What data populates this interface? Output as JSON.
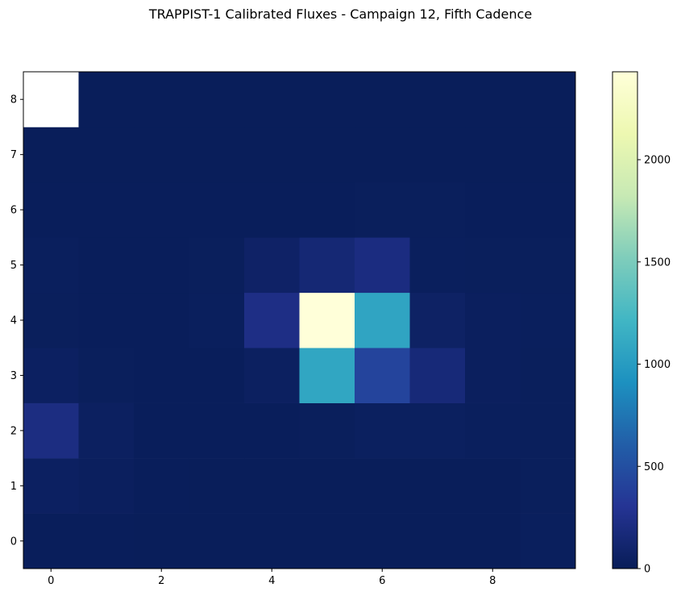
{
  "chart_data": {
    "type": "heatmap",
    "title": "TRAPPIST-1 Calibrated Fluxes - Campaign 12, Fifth Cadence",
    "xlabel": "",
    "ylabel": "",
    "colormap": "YlGnBu_r",
    "x_range": [
      -0.5,
      9.5
    ],
    "y_range": [
      -0.5,
      8.5
    ],
    "x_ticks": [
      0,
      2,
      4,
      6,
      8
    ],
    "y_ticks": [
      0,
      1,
      2,
      3,
      4,
      5,
      6,
      7,
      8
    ],
    "colorbar": {
      "range": [
        0,
        2430
      ],
      "ticks": [
        0,
        500,
        1000,
        1500,
        2000
      ]
    },
    "rows_note": "grid[row][col]; row index = y value (0..8), col index = x value (0..9); null = no data (blank)",
    "grid": [
      [
        15,
        15,
        12,
        12,
        12,
        12,
        12,
        12,
        12,
        25
      ],
      [
        45,
        30,
        15,
        12,
        12,
        12,
        12,
        12,
        12,
        20
      ],
      [
        210,
        40,
        15,
        15,
        15,
        20,
        35,
        35,
        25,
        20
      ],
      [
        45,
        20,
        15,
        15,
        40,
        1080,
        420,
        160,
        30,
        20
      ],
      [
        20,
        15,
        15,
        25,
        230,
        2430,
        1070,
        60,
        30,
        25
      ],
      [
        25,
        15,
        15,
        20,
        70,
        140,
        200,
        25,
        20,
        20
      ],
      [
        15,
        15,
        15,
        15,
        15,
        15,
        20,
        20,
        15,
        15
      ],
      [
        12,
        12,
        12,
        12,
        12,
        12,
        12,
        12,
        12,
        12
      ],
      [
        null,
        12,
        12,
        12,
        12,
        12,
        12,
        12,
        12,
        12
      ]
    ]
  }
}
